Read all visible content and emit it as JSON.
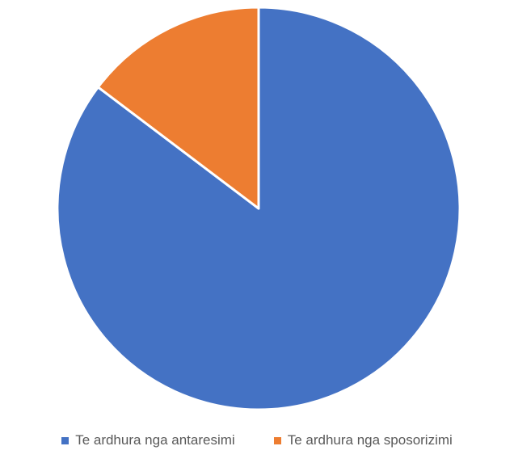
{
  "chart_data": {
    "type": "pie",
    "title": "",
    "series": [
      {
        "values": [
          {
            "label": "Te ardhura nga antaresimi",
            "value": 85.3,
            "color": "#4472C4"
          },
          {
            "label": "Te ardhura nga sposorizimi",
            "value": 14.7,
            "color": "#ED7D31"
          }
        ]
      }
    ],
    "legend": {
      "placement": "bottom",
      "entries": [
        "Te ardhura nga antaresimi",
        "Te ardhura nga sposorizimi"
      ]
    }
  }
}
